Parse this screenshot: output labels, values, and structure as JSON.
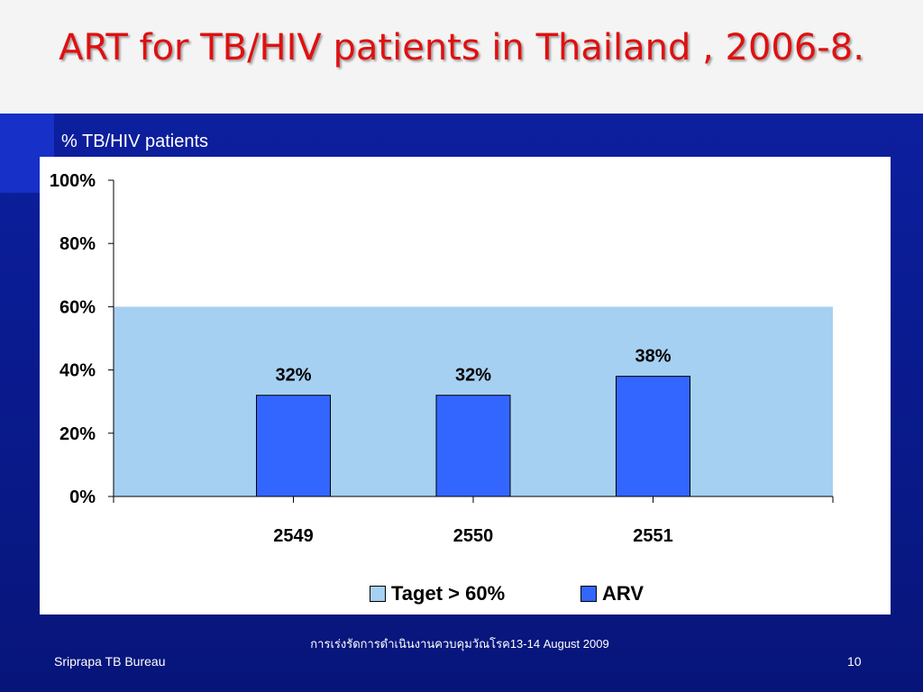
{
  "slide": {
    "title": "ART for TB/HIV patients in Thailand , 2006-8.",
    "footer_left": "Sriprapa TB Bureau",
    "footer_center": "การเร่งรัดการดำเนินงานควบคุมวัณโรค13-14 August 2009",
    "page_number": "10"
  },
  "colors": {
    "title": "#e01010",
    "background": "#0a1a8a",
    "target_area": "#a6d0f2",
    "arv_bar": "#3366ff"
  },
  "chart_data": {
    "type": "bar",
    "ylabel": "% TB/HIV patients",
    "categories": [
      "2549",
      "2550",
      "2551"
    ],
    "ylim": [
      0,
      100
    ],
    "yticks": [
      0,
      20,
      40,
      60,
      80,
      100
    ],
    "ytick_labels": [
      "0%",
      "20%",
      "40%",
      "60%",
      "80%",
      "100%"
    ],
    "series": [
      {
        "name": "Taget > 60%",
        "type": "area",
        "value": 60,
        "color": "#a6d0f2"
      },
      {
        "name": "ARV",
        "type": "bar",
        "values": [
          32,
          32,
          38
        ],
        "labels": [
          "32%",
          "32%",
          "38%"
        ],
        "color": "#3366ff"
      }
    ],
    "legend": "bottom",
    "grid": false
  }
}
